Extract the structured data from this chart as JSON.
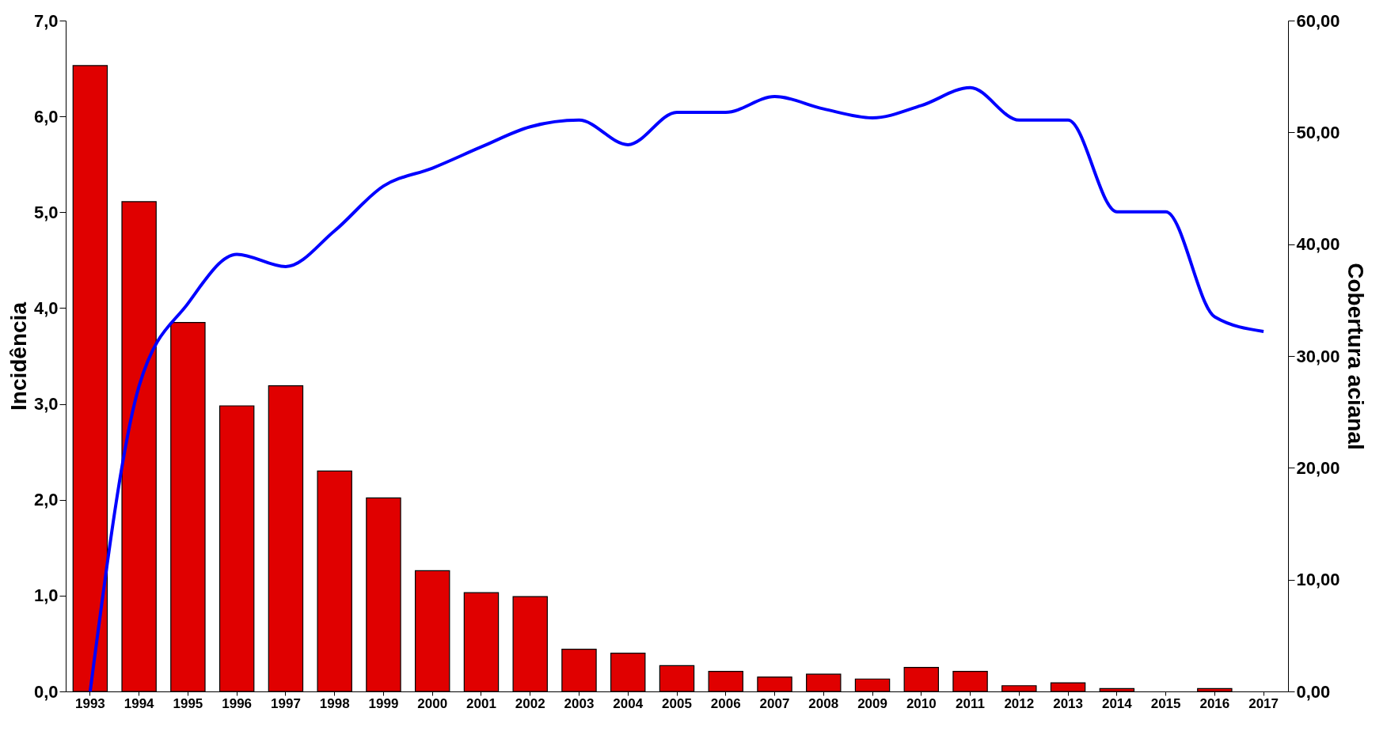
{
  "chart_data": {
    "type": "bar",
    "ylabel": "Incidência",
    "y2label": "Cobertura acianal",
    "categories": [
      "1993",
      "1994",
      "1995",
      "1996",
      "1997",
      "1998",
      "1999",
      "2000",
      "2001",
      "2002",
      "2003",
      "2004",
      "2005",
      "2006",
      "2007",
      "2008",
      "2009",
      "2010",
      "2011",
      "2012",
      "2013",
      "2014",
      "2015",
      "2016",
      "2017"
    ],
    "series": [
      {
        "color": "#e00000",
        "values": [
          6.53,
          5.11,
          3.85,
          2.98,
          3.19,
          2.3,
          2.02,
          1.26,
          1.03,
          0.99,
          0.44,
          0.4,
          0.27,
          0.21,
          0.15,
          0.18,
          0.13,
          0.25,
          0.21,
          0.06,
          0.09,
          0.03,
          null,
          0.03,
          null
        ]
      },
      {
        "type": "line",
        "axis": "y2",
        "color": "#0000ff",
        "values": [
          0,
          27.3,
          34.7,
          39.1,
          38.0,
          41.2,
          45.2,
          46.8,
          48.7,
          50.5,
          51.1,
          48.9,
          51.8,
          51.8,
          53.2,
          52.1,
          51.3,
          52.4,
          54.0,
          51.1,
          51.1,
          42.9,
          42.9,
          33.5,
          32.2
        ]
      }
    ],
    "ylim": [
      0,
      7
    ],
    "yticks": [
      {
        "value": 0,
        "label": "0,0"
      },
      {
        "value": 1,
        "label": "1,0"
      },
      {
        "value": 2,
        "label": "2,0"
      },
      {
        "value": 3,
        "label": "3,0"
      },
      {
        "value": 4,
        "label": "4,0"
      },
      {
        "value": 5,
        "label": "5,0"
      },
      {
        "value": 6,
        "label": "6,0"
      },
      {
        "value": 7,
        "label": "7,0"
      }
    ],
    "y2lim": [
      0,
      60
    ],
    "y2ticks": [
      {
        "value": 0,
        "label": "0,00"
      },
      {
        "value": 10,
        "label": "10,00"
      },
      {
        "value": 20,
        "label": "20,00"
      },
      {
        "value": 30,
        "label": "30,00"
      },
      {
        "value": 40,
        "label": "40,00"
      },
      {
        "value": 50,
        "label": "50,00"
      },
      {
        "value": 60,
        "label": "60,00"
      }
    ],
    "grid": false
  }
}
